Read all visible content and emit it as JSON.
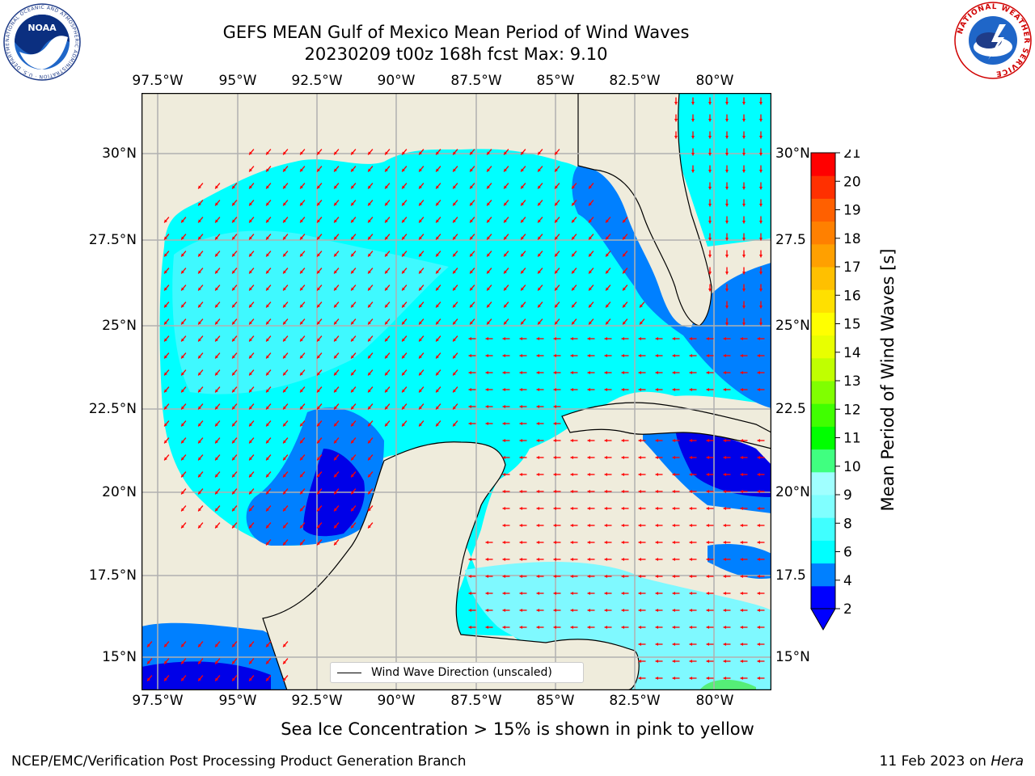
{
  "title": {
    "line1": "GEFS MEAN Gulf of Mexico Mean Period of Wind Waves",
    "line2": "20230209 t00z 168h fcst   Max: 9.10"
  },
  "logos": {
    "left": "noaa-logo",
    "right": "nws-logo",
    "left_ring_text": "NATIONAL OCEANIC AND ATMOSPHERIC ADMINISTRATION · U.S. DEPARTMENT OF COMMERCE",
    "left_center_text": "NOAA",
    "right_ring_text": "NATIONAL WEATHER SERVICE"
  },
  "map": {
    "lon_ticks": [
      "97.5°W",
      "95°W",
      "92.5°W",
      "90°W",
      "87.5°W",
      "85°W",
      "82.5°W",
      "80°W"
    ],
    "lat_ticks_left": [
      "30°N",
      "27.5°N",
      "25°N",
      "22.5°N",
      "20°N",
      "17.5°N",
      "15°N"
    ],
    "lat_ticks_right": [
      "30°N",
      "27.5",
      "25°N",
      "22.5",
      "20°N",
      "17.5",
      "15°N"
    ],
    "extent": {
      "lon": [
        -98.0,
        -78.3
      ],
      "lat": [
        14.0,
        31.8
      ]
    },
    "colors": {
      "land": "#efecdc",
      "ocean_level_4_6": "#00ffff",
      "ocean_level_6_8": "#3ff9ff",
      "ocean_level_2_4": "#0080ff",
      "ocean_level_lt2": "#0000e8",
      "arrow": "#ff0000",
      "grid": "#b0b0b0"
    }
  },
  "legend": {
    "label": "Wind Wave Direction (unscaled)"
  },
  "colorbar": {
    "label": "Mean Period of Wind Waves [s]",
    "ticks": [
      "2",
      "4",
      "6",
      "8",
      "9",
      "10",
      "11",
      "12",
      "13",
      "14",
      "15",
      "16",
      "17",
      "18",
      "19",
      "20",
      "21"
    ],
    "colors": [
      "#0000ff",
      "#0080ff",
      "#00ffff",
      "#40ffff",
      "#80ffff",
      "#a0ffff",
      "#40ff80",
      "#00ff00",
      "#40ff00",
      "#80ff00",
      "#c0ff00",
      "#e8ff00",
      "#ffff00",
      "#ffe000",
      "#ffc000",
      "#ffa000",
      "#ff8000",
      "#ff6000",
      "#ff3000",
      "#ff0000"
    ],
    "under_color": "#0000ff"
  },
  "caption": "Sea Ice Concentration > 15% is shown in pink to yellow",
  "footer": {
    "left": "NCEP/EMC/Verification Post Processing Product Generation Branch",
    "right_date": "11 Feb 2023 on ",
    "right_host": "Hera"
  }
}
